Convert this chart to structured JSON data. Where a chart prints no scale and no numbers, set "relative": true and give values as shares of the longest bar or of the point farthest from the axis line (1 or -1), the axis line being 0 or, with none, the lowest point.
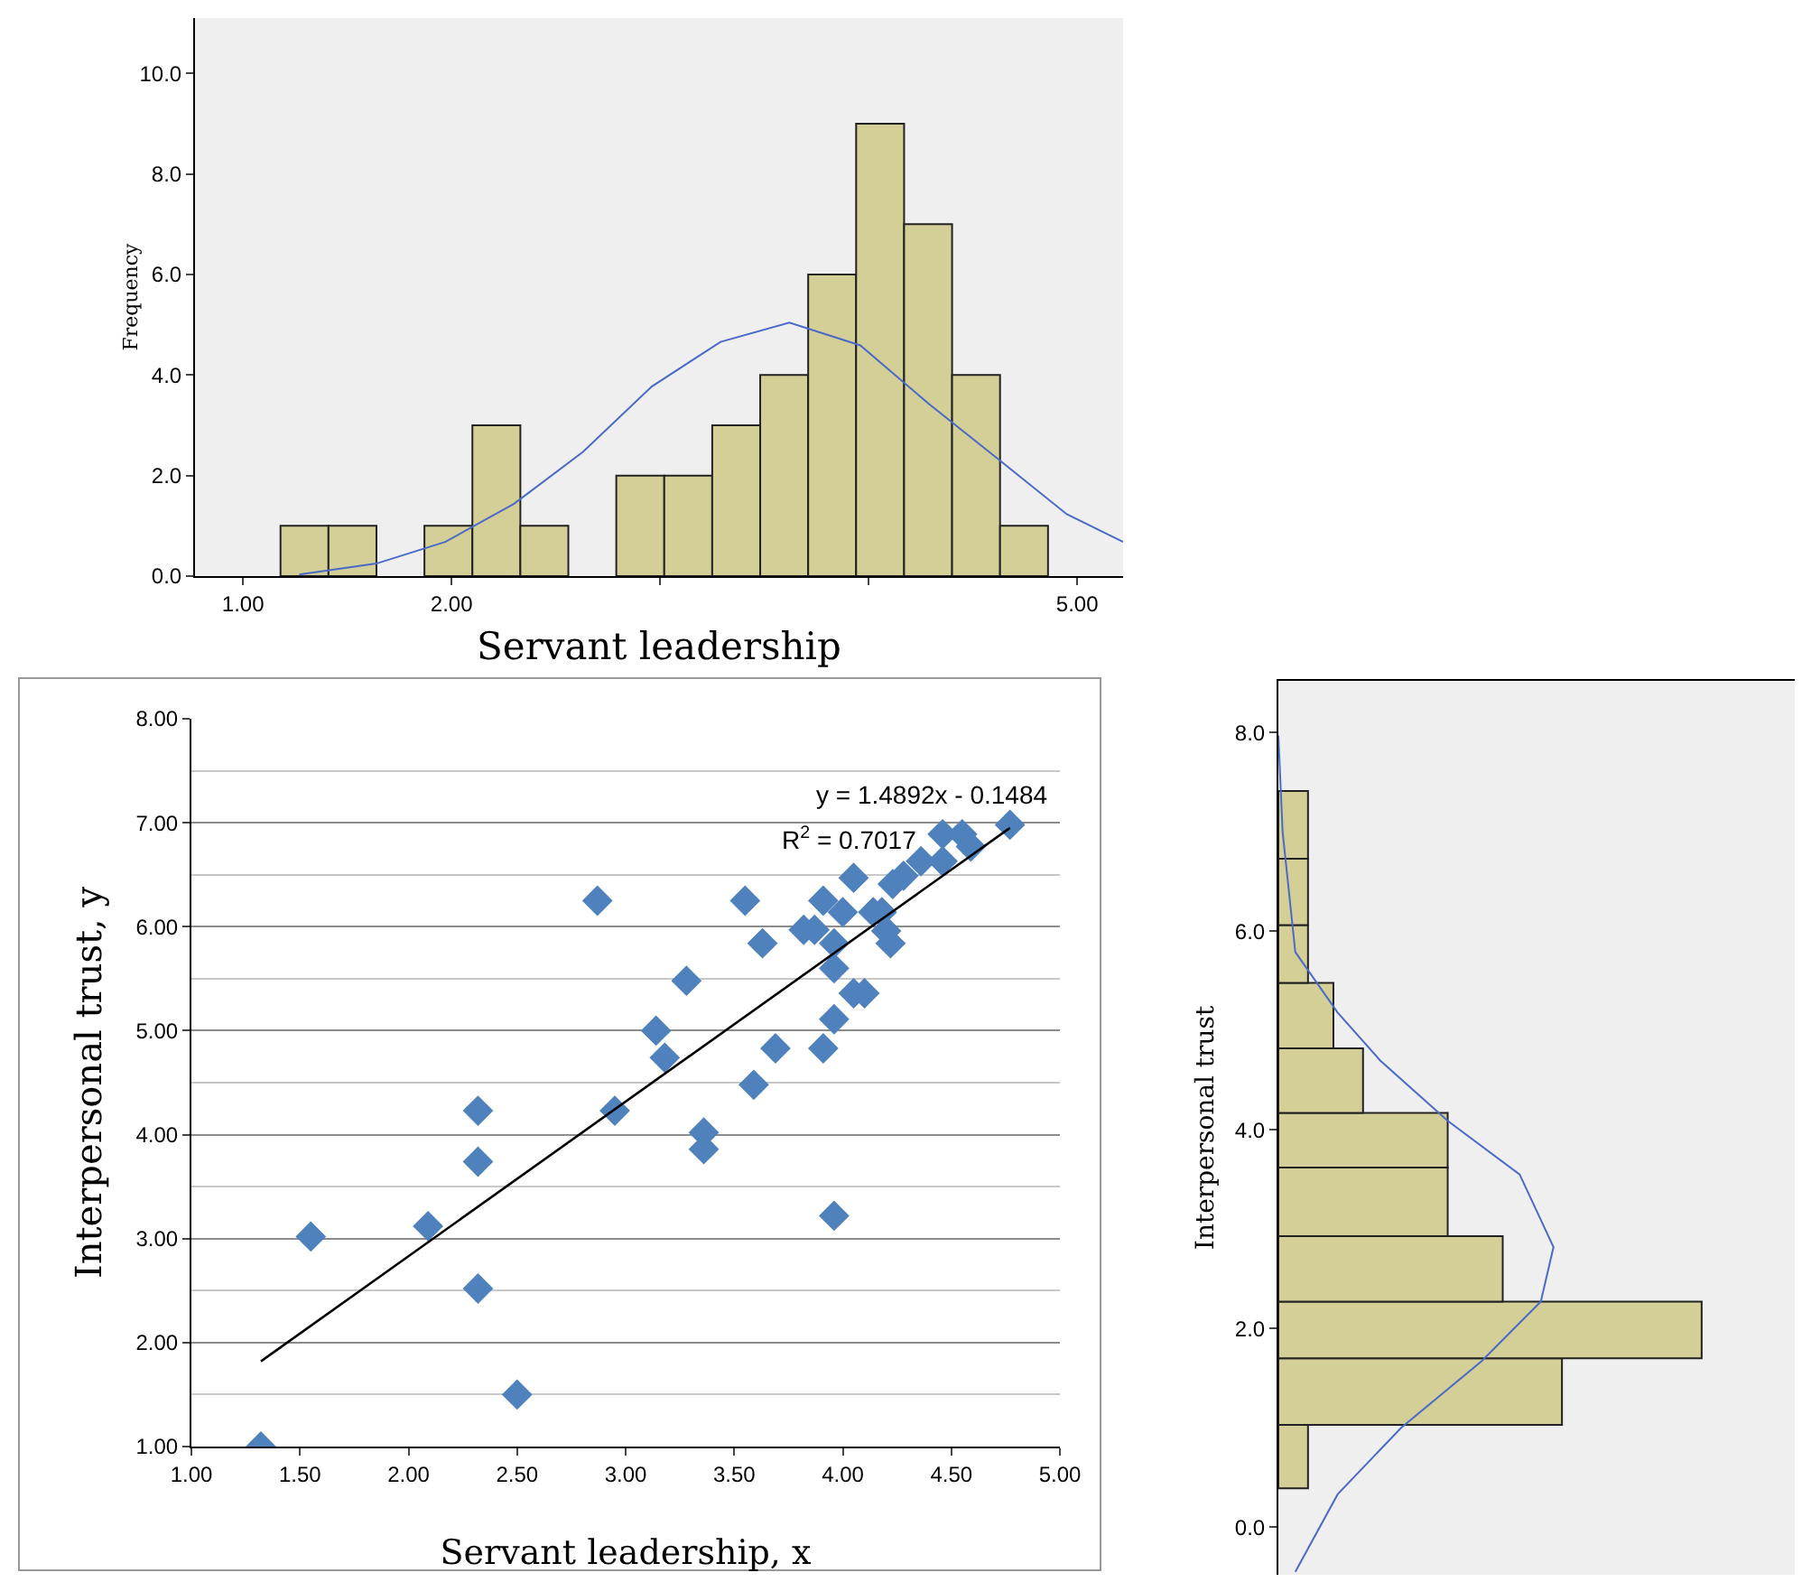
{
  "chart_data": [
    {
      "type": "histogram",
      "xlabel": "Servant leadership",
      "ylabel": "Frequency",
      "xlim": [
        0.77,
        5.22
      ],
      "xticks": [
        {
          "value": 1,
          "label": "1.00"
        },
        {
          "value": 2,
          "label": "2.00"
        },
        {
          "value": 3,
          "label": null
        },
        {
          "value": 4,
          "label": null
        },
        {
          "value": 5,
          "label": "5.00"
        }
      ],
      "ylim": [
        0,
        11.1
      ],
      "yticks": [
        {
          "value": 0,
          "label": "0.0"
        },
        {
          "value": 2,
          "label": "2.0"
        },
        {
          "value": 4,
          "label": "4.0"
        },
        {
          "value": 6,
          "label": "6.0"
        },
        {
          "value": 8,
          "label": "8.0"
        },
        {
          "value": 10,
          "label": "10.0"
        }
      ],
      "grid": false,
      "legend": false,
      "series": [
        {
          "type": "histogram",
          "color": "#d4cf97",
          "bins": [
            1.18,
            1.41,
            1.64,
            1.87,
            2.1,
            2.33,
            2.56,
            2.79,
            3.02,
            3.25,
            3.48,
            3.71,
            3.94,
            4.17,
            4.4,
            4.63,
            4.86
          ],
          "values": [
            1,
            1,
            0,
            1,
            3,
            1,
            0,
            2,
            2,
            3,
            4,
            6,
            9,
            7,
            4,
            1
          ]
        },
        {
          "type": "line",
          "color": "#4a6ac8",
          "x": [
            1.27,
            1.64,
            1.97,
            2.3,
            2.63,
            2.96,
            3.29,
            3.62,
            3.96,
            4.29,
            4.62,
            4.95,
            5.22
          ],
          "values": [
            0.03,
            0.25,
            0.68,
            1.44,
            2.47,
            3.77,
            4.66,
            5.04,
            4.59,
            3.42,
            2.33,
            1.23,
            0.68
          ]
        }
      ]
    },
    {
      "type": "scatter",
      "xlabel": "Servant leadership, x",
      "ylabel": "Interpersonal trust, y",
      "grid": "y",
      "legend": false,
      "xlim": [
        1,
        5
      ],
      "ylim": [
        1,
        8
      ],
      "xticks": [
        {
          "value": 1,
          "label": "1.00"
        },
        {
          "value": 1.5,
          "label": "1.50"
        },
        {
          "value": 2,
          "label": "2.00"
        },
        {
          "value": 2.5,
          "label": "2.50"
        },
        {
          "value": 3,
          "label": "3.00"
        },
        {
          "value": 3.5,
          "label": "3.50"
        },
        {
          "value": 4,
          "label": "4.00"
        },
        {
          "value": 4.5,
          "label": "4.50"
        },
        {
          "value": 5,
          "label": "5.00"
        }
      ],
      "yticks": [
        {
          "value": 1,
          "label": "1.00"
        },
        {
          "value": 2,
          "label": "2.00"
        },
        {
          "value": 3,
          "label": "3.00"
        },
        {
          "value": 4,
          "label": "4.00"
        },
        {
          "value": 5,
          "label": "5.00"
        },
        {
          "value": 6,
          "label": "6.00"
        },
        {
          "value": 7,
          "label": "7.00"
        },
        {
          "value": 8,
          "label": "8.00"
        }
      ],
      "annotations": [
        "y = 1.4892x - 0.1484",
        "R$^{2}$ = 0.7017"
      ],
      "series": [
        {
          "type": "scatter",
          "marker": "diamond",
          "color": "#4f81bd",
          "x": [
            1.32,
            1.55,
            2.09,
            2.32,
            2.32,
            2.32,
            2.5,
            2.87,
            2.95,
            3.14,
            3.18,
            3.28,
            3.36,
            3.36,
            3.55,
            3.59,
            3.63,
            3.69,
            3.82,
            3.87,
            3.91,
            3.91,
            3.96,
            3.96,
            3.96,
            3.96,
            4.0,
            4.05,
            4.05,
            4.1,
            4.14,
            4.18,
            4.2,
            4.22,
            4.23,
            4.28,
            4.36,
            4.46,
            4.46,
            4.55,
            4.59,
            4.77
          ],
          "values": [
            1.0,
            3.02,
            3.12,
            4.23,
            3.74,
            2.52,
            1.5,
            6.25,
            4.23,
            5.0,
            4.74,
            5.48,
            4.02,
            3.86,
            6.25,
            4.48,
            5.84,
            4.83,
            5.97,
            5.97,
            6.25,
            4.83,
            5.84,
            5.6,
            5.11,
            3.22,
            6.14,
            6.47,
            5.36,
            5.36,
            6.14,
            6.14,
            5.96,
            5.84,
            6.41,
            6.49,
            6.63,
            6.63,
            6.89,
            6.89,
            6.77,
            6.98
          ]
        },
        {
          "type": "line",
          "color": "#000000",
          "x": [
            1.32,
            4.77
          ],
          "values": [
            1.82,
            6.95
          ]
        }
      ]
    },
    {
      "type": "histogram",
      "orientation": "horizontal",
      "ylabel": "Interpersonal trust",
      "relative": true,
      "grid": false,
      "legend": false,
      "ylim": [
        -0.48,
        8.52
      ],
      "yticks": [
        {
          "value": 0,
          "label": "0.0"
        },
        {
          "value": 2,
          "label": "2.0"
        },
        {
          "value": 4,
          "label": "4.0"
        },
        {
          "value": 6,
          "label": "6.0"
        },
        {
          "value": 8,
          "label": "8.0"
        }
      ],
      "series": [
        {
          "type": "histogram",
          "color": "#d4cf97",
          "bins": [
            0.39,
            1.03,
            1.7,
            2.27,
            2.93,
            3.62,
            4.17,
            4.82,
            5.48,
            6.06,
            6.73,
            7.41
          ],
          "values": [
            0.07,
            0.67,
            1,
            0.53,
            0.4,
            0.4,
            0.2,
            0.13,
            0.07,
            0.07,
            0.07
          ]
        },
        {
          "type": "line",
          "color": "#4a6ac8",
          "x": [
            7.97,
            7.0,
            5.79,
            5.18,
            4.7,
            4.09,
            3.55,
            2.82,
            2.27,
            1.67,
            1.0,
            0.33,
            -0.45
          ],
          "values": [
            0,
            0.01,
            0.04,
            0.14,
            0.24,
            0.4,
            0.57,
            0.65,
            0.62,
            0.48,
            0.29,
            0.14,
            0.04
          ]
        }
      ]
    }
  ]
}
